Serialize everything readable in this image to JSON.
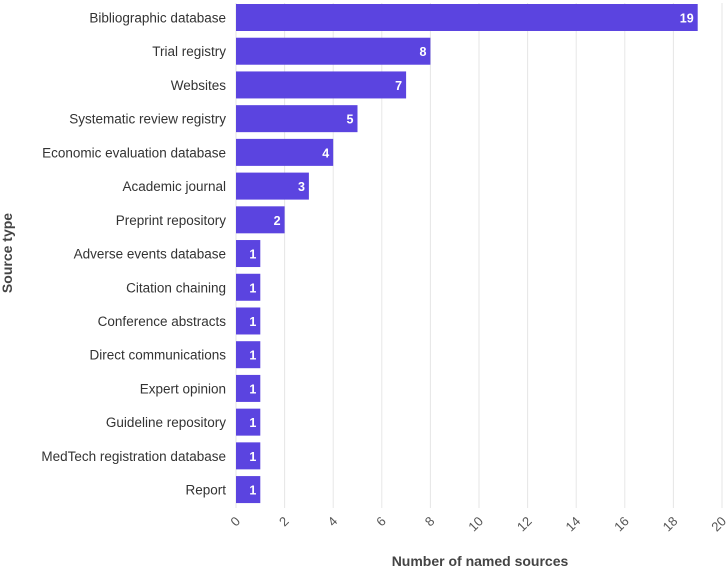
{
  "chart_data": {
    "type": "bar",
    "orientation": "horizontal",
    "title": "",
    "xlabel": "Number of named sources",
    "ylabel": "Source type",
    "xlim": [
      0,
      20
    ],
    "xticks": [
      "0",
      "2",
      "4",
      "6",
      "8",
      "10",
      "12",
      "14",
      "16",
      "18",
      "20"
    ],
    "grid": true,
    "categories": [
      "Bibliographic database",
      "Trial registry",
      "Websites",
      "Systematic review registry",
      "Economic evaluation database",
      "Academic journal",
      "Preprint repository",
      "Adverse events database",
      "Citation chaining",
      "Conference abstracts",
      "Direct communications",
      "Expert opinion",
      "Guideline repository",
      "MedTech registration database",
      "Report"
    ],
    "values": [
      19,
      8,
      7,
      5,
      4,
      3,
      2,
      1,
      1,
      1,
      1,
      1,
      1,
      1,
      1
    ],
    "data_labels": [
      "19",
      "8",
      "7",
      "5",
      "4",
      "3",
      "2",
      "1",
      "1",
      "1",
      "1",
      "1",
      "1",
      "1",
      "1"
    ],
    "bar_color": "#5b44e0",
    "grid_color": "#e6e6e6"
  }
}
